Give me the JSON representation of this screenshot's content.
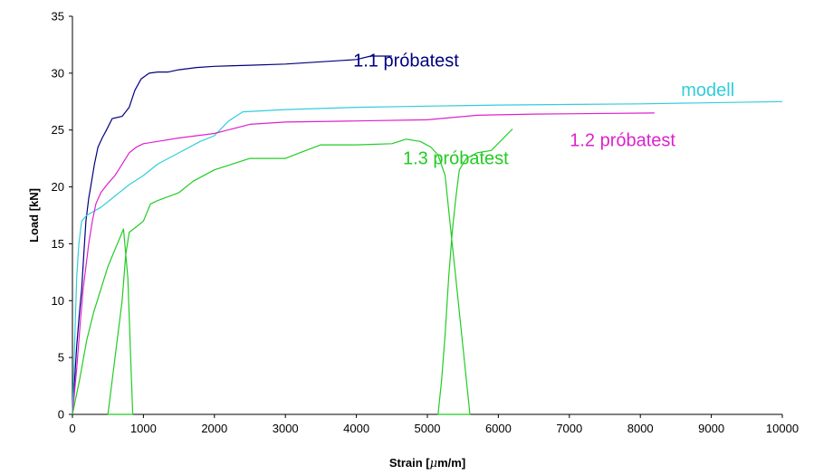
{
  "chart_data": {
    "type": "line",
    "xlabel_pre": "Strain [",
    "xlabel_mu": "μ",
    "xlabel_post": "m/m]",
    "ylabel": "Load [kN]",
    "xlim": [
      0,
      10000
    ],
    "ylim": [
      0,
      35
    ],
    "x_ticks": [
      0,
      1000,
      2000,
      3000,
      4000,
      5000,
      6000,
      7000,
      8000,
      9000,
      10000
    ],
    "y_ticks": [
      0,
      5,
      10,
      15,
      20,
      25,
      30,
      35
    ],
    "grid": false,
    "legend": "none",
    "series": [
      {
        "name": "1.1 próbatest",
        "color": "#000080",
        "label_at": [
          4700,
          30.6
        ],
        "points": [
          [
            0,
            0
          ],
          [
            30,
            3
          ],
          [
            60,
            6
          ],
          [
            100,
            9
          ],
          [
            130,
            11
          ],
          [
            160,
            14
          ],
          [
            190,
            17
          ],
          [
            230,
            19
          ],
          [
            270,
            20.5
          ],
          [
            310,
            22
          ],
          [
            360,
            23.5
          ],
          [
            420,
            24.3
          ],
          [
            480,
            25
          ],
          [
            560,
            26
          ],
          [
            700,
            26.2
          ],
          [
            800,
            27
          ],
          [
            880,
            28.5
          ],
          [
            970,
            29.5
          ],
          [
            1080,
            30
          ],
          [
            1200,
            30.1
          ],
          [
            1350,
            30.1
          ],
          [
            1500,
            30.3
          ],
          [
            1750,
            30.5
          ],
          [
            2000,
            30.6
          ],
          [
            2500,
            30.7
          ],
          [
            3000,
            30.8
          ],
          [
            3500,
            31
          ],
          [
            4000,
            31.2
          ],
          [
            4200,
            31.5
          ],
          [
            4500,
            31.5
          ]
        ]
      },
      {
        "name": "modell",
        "color": "#33ccdd",
        "label_at": [
          8950,
          28
        ],
        "points": [
          [
            0,
            0
          ],
          [
            20,
            4
          ],
          [
            40,
            8
          ],
          [
            60,
            12
          ],
          [
            90,
            15
          ],
          [
            130,
            17
          ],
          [
            200,
            17.5
          ],
          [
            400,
            18.2
          ],
          [
            600,
            19.2
          ],
          [
            800,
            20.2
          ],
          [
            1000,
            21
          ],
          [
            1200,
            22
          ],
          [
            1500,
            23
          ],
          [
            1800,
            24
          ],
          [
            2000,
            24.5
          ],
          [
            2200,
            25.8
          ],
          [
            2400,
            26.6
          ],
          [
            3000,
            26.8
          ],
          [
            4000,
            27
          ],
          [
            5000,
            27.1
          ],
          [
            6000,
            27.2
          ],
          [
            8000,
            27.3
          ],
          [
            10000,
            27.5
          ]
        ]
      },
      {
        "name": "1.2 próbatest",
        "color": "#dd22cc",
        "label_at": [
          7750,
          23.6
        ],
        "points": [
          [
            0,
            0
          ],
          [
            60,
            4
          ],
          [
            110,
            8
          ],
          [
            150,
            11
          ],
          [
            190,
            13
          ],
          [
            230,
            15
          ],
          [
            280,
            17
          ],
          [
            330,
            18.5
          ],
          [
            400,
            19.5
          ],
          [
            500,
            20.3
          ],
          [
            600,
            21
          ],
          [
            700,
            22
          ],
          [
            800,
            23
          ],
          [
            900,
            23.5
          ],
          [
            1000,
            23.8
          ],
          [
            1200,
            24
          ],
          [
            1500,
            24.3
          ],
          [
            2000,
            24.7
          ],
          [
            2500,
            25.5
          ],
          [
            3000,
            25.7
          ],
          [
            4000,
            25.8
          ],
          [
            5000,
            25.9
          ],
          [
            5700,
            26.3
          ],
          [
            6500,
            26.4
          ],
          [
            8200,
            26.5
          ]
        ]
      },
      {
        "name": "1.3 próbatest",
        "color": "#22cc22",
        "label_at": [
          5400,
          22
        ],
        "points": [
          [
            0,
            0
          ],
          [
            100,
            3
          ],
          [
            200,
            6.5
          ],
          [
            300,
            9
          ],
          [
            400,
            11
          ],
          [
            500,
            13
          ],
          [
            600,
            14.5
          ],
          [
            700,
            16
          ],
          [
            720,
            16.3
          ],
          [
            780,
            12
          ],
          [
            820,
            5
          ],
          [
            850,
            0
          ],
          [
            500,
            0
          ],
          [
            560,
            3
          ],
          [
            620,
            6
          ],
          [
            700,
            10
          ],
          [
            750,
            14
          ],
          [
            800,
            16
          ],
          [
            900,
            16.5
          ],
          [
            1000,
            17
          ],
          [
            1100,
            18.5
          ],
          [
            1200,
            18.8
          ],
          [
            1500,
            19.5
          ],
          [
            1700,
            20.5
          ],
          [
            2000,
            21.5
          ],
          [
            2500,
            22.5
          ],
          [
            3000,
            22.5
          ],
          [
            3200,
            23
          ],
          [
            3500,
            23.7
          ],
          [
            4000,
            23.7
          ],
          [
            4500,
            23.8
          ],
          [
            4700,
            24.2
          ],
          [
            4900,
            24
          ],
          [
            5050,
            23.5
          ],
          [
            5150,
            22.8
          ],
          [
            5250,
            21
          ],
          [
            5300,
            18
          ],
          [
            5350,
            15
          ],
          [
            5400,
            12
          ],
          [
            5450,
            9
          ],
          [
            5500,
            6
          ],
          [
            5550,
            3
          ],
          [
            5600,
            0
          ],
          [
            5150,
            0
          ],
          [
            5200,
            3
          ],
          [
            5250,
            7
          ],
          [
            5300,
            12
          ],
          [
            5350,
            16
          ],
          [
            5400,
            19
          ],
          [
            5450,
            21.5
          ],
          [
            5550,
            22.5
          ],
          [
            5700,
            23
          ],
          [
            5900,
            23.2
          ],
          [
            6200,
            25.1
          ]
        ]
      }
    ]
  }
}
